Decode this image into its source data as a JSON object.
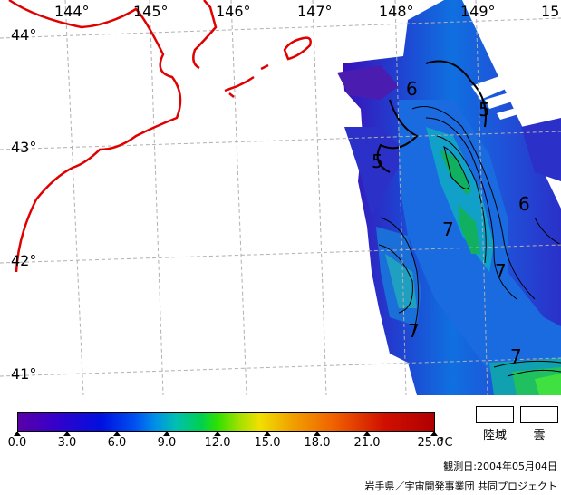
{
  "map": {
    "longitude_labels": [
      "144°",
      "145°",
      "146°",
      "147°",
      "148°",
      "149°",
      "15"
    ],
    "latitude_labels": [
      "44°",
      "43°",
      "42°",
      "41°"
    ],
    "contour_labels": [
      "6",
      "5",
      "5",
      "7",
      "6",
      "7",
      "7",
      "7"
    ],
    "colors": {
      "coastline": "#e00000",
      "grid": "#b0b0b0",
      "land": "#ffffff"
    }
  },
  "legend": {
    "ticks": [
      "0.0",
      "3.0",
      "6.0",
      "9.0",
      "12.0",
      "15.0",
      "18.0",
      "21.0",
      "25.0"
    ],
    "unit": "°C",
    "land_label": "陸域",
    "cloud_label": "雲"
  },
  "footer": {
    "observation_date": "観測日:2004年05月04日",
    "credit": "岩手県／宇宙開発事業団 共同プロジェクト"
  }
}
